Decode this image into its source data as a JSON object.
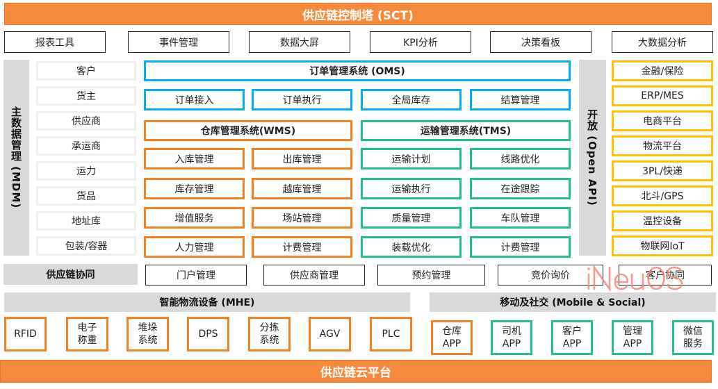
{
  "top_title": "供应链控制塔 (SCT)",
  "tools": [
    "报表工具",
    "事件管理",
    "数据大屏",
    "KPI分析",
    "决策看板",
    "大数据分析"
  ],
  "mdm": {
    "label": "主数据管理 (MDM)",
    "items": [
      "客户",
      "货主",
      "供应商",
      "承运商",
      "运力",
      "货品",
      "地址库",
      "包装/容器"
    ]
  },
  "oms": {
    "title": "订单管理系统 (OMS)",
    "items": [
      "订单接入",
      "订单执行",
      "全局库存",
      "结算管理"
    ]
  },
  "wms": {
    "title": "仓库管理系统(WMS)",
    "items": [
      "入库管理",
      "出库管理",
      "库存管理",
      "越库管理",
      "增值服务",
      "场站管理",
      "人力管理",
      "计费管理"
    ]
  },
  "tms": {
    "title": "运输管理系统(TMS)",
    "items": [
      "运输计划",
      "线路优化",
      "运输执行",
      "在途跟踪",
      "质量管理",
      "车队管理",
      "装载优化",
      "计费管理"
    ]
  },
  "open_api": {
    "label": "开放 (Open API)"
  },
  "external": [
    "金融/保险",
    "ERP/MES",
    "电商平台",
    "物流平台",
    "3PL/快递",
    "北斗/GPS",
    "温控设备",
    "物联网IoT"
  ],
  "collab": {
    "label": "供应链协同",
    "items": [
      "门户管理",
      "供应商管理",
      "预约管理",
      "竞价询价",
      "客户协同"
    ]
  },
  "mhe": {
    "title": "智能物流设备 (MHE)",
    "items": [
      "RFID",
      "电子\n称重",
      "堆垛\n系统",
      "DPS",
      "分拣\n系统",
      "AGV",
      "PLC"
    ]
  },
  "mobile": {
    "title": "移动及社交 (Mobile & Social)",
    "items": [
      "仓库\nAPP",
      "司机\nAPP",
      "客户\nAPP",
      "管理\nAPP",
      "微信\n服务"
    ]
  },
  "bottom_title": "供应链云平台",
  "watermark": "iNeuOS",
  "colors": {
    "orange": "#F58A3C",
    "blue": "#00B0F0",
    "green": "#22C08C",
    "yellow": "#FFC000",
    "gray": "#D9D9D9"
  }
}
